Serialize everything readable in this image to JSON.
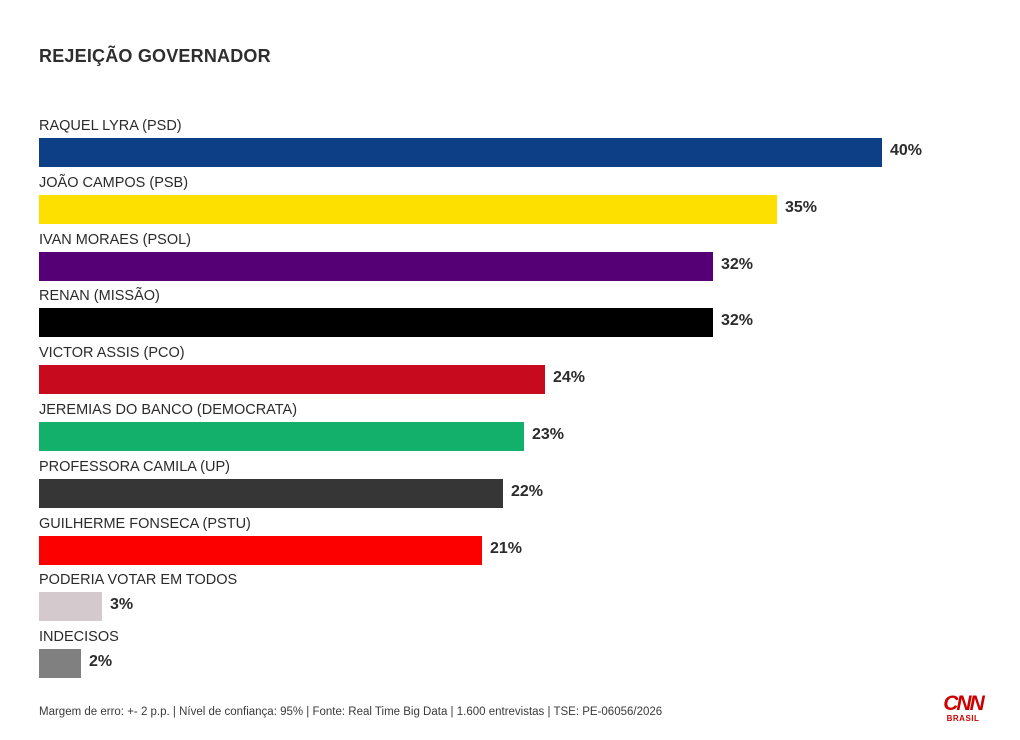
{
  "chart_data": {
    "type": "bar",
    "orientation": "horizontal",
    "title": "REJEIÇÃO GOVERNADOR",
    "xlim": [
      0,
      40
    ],
    "unit": "%",
    "categories": [
      "RAQUEL LYRA (PSD)",
      "JOÃO CAMPOS (PSB)",
      "IVAN MORAES (PSOL)",
      "RENAN (MISSÃO)",
      "VICTOR ASSIS (PCO)",
      "JEREMIAS DO BANCO (DEMOCRATA)",
      "PROFESSORA CAMILA (UP)",
      "GUILHERME FONSECA (PSTU)",
      "PODERIA VOTAR EM TODOS",
      "INDECISOS"
    ],
    "values": [
      40,
      35,
      32,
      32,
      24,
      23,
      22,
      21,
      3,
      2
    ],
    "value_labels": [
      "40%",
      "35%",
      "32%",
      "32%",
      "24%",
      "23%",
      "22%",
      "21%",
      "3%",
      "2%"
    ],
    "colors": [
      "#0d3f86",
      "#fde000",
      "#560075",
      "#000000",
      "#c70a1d",
      "#12b06b",
      "#363636",
      "#fc0000",
      "#d4cace",
      "#808080"
    ]
  },
  "footer": "Margem de erro: +- 2 p.p. | Nível de confiança: 95% | Fonte: Real Time Big Data | 1.600 entrevistas | TSE: PE-06056/2026",
  "logo": {
    "name": "CNN",
    "sub": "BRASIL"
  }
}
